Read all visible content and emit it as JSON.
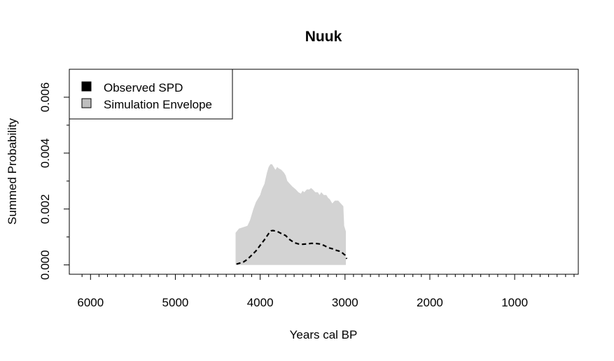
{
  "chart_data": {
    "type": "area",
    "title": "Nuuk",
    "xlabel": "Years cal BP",
    "ylabel": "Summed Probability",
    "xlim": [
      6250,
      250
    ],
    "ylim": [
      0,
      0.007
    ],
    "x_reversed": true,
    "x_ticks": [
      6000,
      5000,
      4000,
      3000,
      2000,
      1000
    ],
    "x_tick_labels": [
      "6000",
      "5000",
      "4000",
      "3000",
      "2000",
      "1000"
    ],
    "y_ticks": [
      0,
      0.002,
      0.004,
      0.006
    ],
    "y_tick_labels": [
      "0.000",
      "0.002",
      "0.004",
      "0.006"
    ],
    "grid": false,
    "legend": {
      "position": "top-left",
      "entries": [
        {
          "label": "Observed SPD",
          "color": "#000000"
        },
        {
          "label": "Simulation Envelope",
          "color": "#bebebe"
        }
      ]
    },
    "series": [
      {
        "name": "Simulation Envelope",
        "kind": "envelope",
        "color": "#d3d3d3",
        "x": [
          4290,
          4250,
          4200,
          4150,
          4120,
          4100,
          4080,
          4050,
          4020,
          4000,
          3980,
          3950,
          3920,
          3900,
          3880,
          3860,
          3840,
          3820,
          3800,
          3780,
          3750,
          3720,
          3700,
          3680,
          3650,
          3620,
          3600,
          3580,
          3550,
          3520,
          3500,
          3480,
          3450,
          3420,
          3400,
          3380,
          3350,
          3320,
          3300,
          3280,
          3250,
          3220,
          3200,
          3180,
          3150,
          3120,
          3100,
          3080,
          3050,
          3020,
          3010,
          2990
        ],
        "upper": [
          0.00115,
          0.0013,
          0.00135,
          0.0014,
          0.0016,
          0.0018,
          0.002,
          0.00225,
          0.0024,
          0.0025,
          0.0027,
          0.0029,
          0.0033,
          0.0035,
          0.0036,
          0.0036,
          0.0035,
          0.0034,
          0.0035,
          0.00345,
          0.0034,
          0.0033,
          0.0032,
          0.003,
          0.0029,
          0.0028,
          0.00275,
          0.0027,
          0.0026,
          0.00255,
          0.00265,
          0.0026,
          0.0027,
          0.0027,
          0.00275,
          0.0027,
          0.0026,
          0.0026,
          0.0025,
          0.0026,
          0.0025,
          0.0025,
          0.0024,
          0.00235,
          0.0022,
          0.0023,
          0.0023,
          0.0023,
          0.0022,
          0.0021,
          0.0014,
          0.0012
        ],
        "lower": [
          0,
          0,
          0,
          0,
          0,
          0,
          0,
          0,
          0,
          0,
          0,
          0,
          0,
          0,
          0,
          0,
          0,
          0,
          0,
          0,
          0,
          0,
          0,
          0,
          0,
          0,
          0,
          0,
          0,
          0,
          0,
          0,
          0,
          0,
          0,
          0,
          0,
          0,
          0,
          0,
          0,
          0,
          0,
          0,
          0,
          0,
          0,
          0,
          0,
          0,
          0,
          0
        ]
      },
      {
        "name": "Observed SPD",
        "kind": "line",
        "color": "#000000",
        "dash": "dashed",
        "x": [
          4280,
          4200,
          4150,
          4100,
          4050,
          4000,
          3950,
          3900,
          3870,
          3850,
          3800,
          3750,
          3700,
          3650,
          3600,
          3550,
          3500,
          3450,
          3400,
          3350,
          3300,
          3250,
          3200,
          3150,
          3100,
          3050,
          3000,
          2980
        ],
        "y": [
          3e-05,
          0.0001,
          0.0002,
          0.00035,
          0.0005,
          0.0007,
          0.0009,
          0.00112,
          0.00122,
          0.00123,
          0.0012,
          0.00112,
          0.00105,
          0.0009,
          0.0008,
          0.00075,
          0.00074,
          0.00075,
          0.00077,
          0.00077,
          0.00075,
          0.0007,
          0.00062,
          0.00058,
          0.00052,
          0.00048,
          0.00035,
          0.00022
        ]
      }
    ]
  }
}
